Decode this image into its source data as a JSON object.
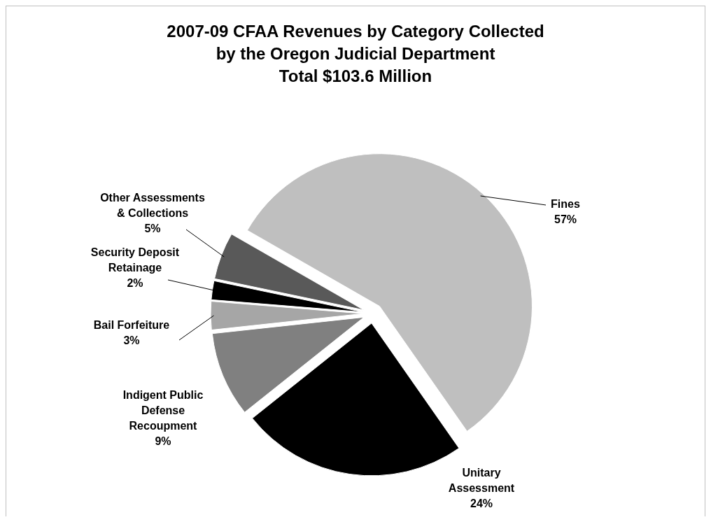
{
  "chart_data": {
    "type": "pie",
    "title": "2007-09 CFAA Revenues by Category Collected by the Oregon Judicial Department",
    "subtitle": "Total  $103.6 Million",
    "categories": [
      "Fines",
      "Unitary Assessment",
      "Indigent Public Defense Recoupment",
      "Bail Forfeiture",
      "Security Deposit Retainage",
      "Other Assessments & Collections"
    ],
    "values": [
      57,
      24,
      9,
      3,
      2,
      5
    ],
    "colors": [
      "#bfbfbf",
      "#000000",
      "#808080",
      "#a6a6a6",
      "#000000",
      "#595959"
    ],
    "value_labels": [
      "57%",
      "24%",
      "9%",
      "3%",
      "2%",
      "5%"
    ]
  }
}
